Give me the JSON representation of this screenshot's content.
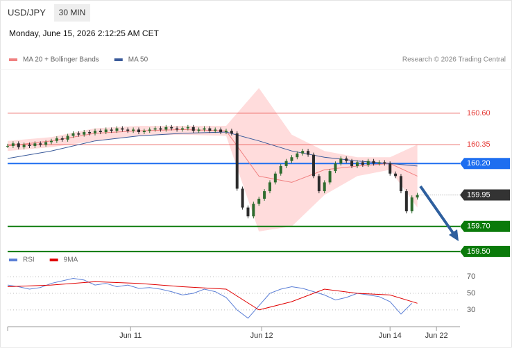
{
  "header": {
    "symbol": "USD/JPY",
    "timeframe": "30 MIN",
    "datetime": "Monday, June 15, 2026 2:12:25 AM CET",
    "credit": "Research © 2026 Trading Central"
  },
  "chart_data": [
    {
      "type": "candlestick",
      "x": [
        0,
        1,
        2,
        3,
        4,
        5,
        6,
        7,
        8,
        9,
        10,
        11,
        12,
        13,
        14,
        15,
        16,
        17,
        18,
        19,
        20,
        21,
        22,
        23,
        24,
        25,
        26,
        27,
        28,
        29,
        30,
        31,
        32,
        33,
        34,
        35,
        36,
        37,
        38,
        39,
        40,
        41,
        42,
        43,
        44,
        45,
        46,
        47,
        48,
        49,
        50,
        51,
        52,
        53,
        54,
        55,
        56,
        57,
        58,
        59,
        60,
        61,
        62,
        63,
        64,
        65,
        66,
        67,
        68,
        69,
        70,
        71,
        72,
        73,
        74,
        75
      ],
      "close": [
        160.34,
        160.36,
        160.33,
        160.35,
        160.34,
        160.36,
        160.35,
        160.37,
        160.38,
        160.4,
        160.39,
        160.42,
        160.44,
        160.43,
        160.45,
        160.44,
        160.46,
        160.45,
        160.47,
        160.46,
        160.48,
        160.47,
        160.46,
        160.47,
        160.45,
        160.46,
        160.47,
        160.48,
        160.47,
        160.49,
        160.48,
        160.47,
        160.48,
        160.49,
        160.46,
        160.47,
        160.48,
        160.46,
        160.47,
        160.45,
        160.46,
        160.44,
        160.0,
        159.85,
        159.78,
        159.88,
        159.92,
        159.98,
        160.05,
        160.12,
        160.18,
        160.22,
        160.25,
        160.28,
        160.3,
        160.27,
        160.1,
        159.98,
        160.05,
        160.14,
        160.2,
        160.24,
        160.22,
        160.18,
        160.21,
        160.19,
        160.22,
        160.2,
        160.21,
        160.2,
        160.12,
        160.1,
        159.98,
        159.82,
        159.93,
        159.95
      ],
      "series": [
        {
          "name": "MA 20 + Bollinger Bands",
          "color": "#f08080",
          "band_color": "#ffdcdc",
          "x": [
            0,
            8,
            16,
            24,
            32,
            40,
            46,
            52,
            58,
            64,
            70,
            75
          ],
          "values": [
            160.34,
            160.38,
            160.44,
            160.46,
            160.47,
            160.46,
            160.1,
            160.05,
            160.15,
            160.18,
            160.2,
            160.1
          ],
          "upper": [
            160.38,
            160.41,
            160.48,
            160.5,
            160.5,
            160.5,
            160.8,
            160.43,
            160.3,
            160.25,
            160.25,
            160.35
          ],
          "lower": [
            160.3,
            160.33,
            160.38,
            160.42,
            160.43,
            160.42,
            159.66,
            159.7,
            159.95,
            160.1,
            160.15,
            159.85
          ]
        },
        {
          "name": "MA 50",
          "color": "#3a5a9a",
          "x": [
            0,
            8,
            16,
            24,
            32,
            40,
            46,
            52,
            58,
            64,
            70,
            75
          ],
          "values": [
            160.24,
            160.3,
            160.38,
            160.42,
            160.44,
            160.45,
            160.38,
            160.3,
            160.25,
            160.22,
            160.2,
            160.18
          ]
        }
      ],
      "levels": [
        {
          "value": 160.6,
          "label": "160.60",
          "color": "#e53935",
          "style": "text"
        },
        {
          "value": 160.35,
          "label": "160.35",
          "color": "#e53935",
          "style": "text"
        },
        {
          "value": 160.2,
          "label": "160.20",
          "color": "#1e6ef0",
          "style": "box"
        },
        {
          "value": 159.95,
          "label": "159.95",
          "color": "#333333",
          "style": "current"
        },
        {
          "value": 159.7,
          "label": "159.70",
          "color": "#0a7a0a",
          "style": "box"
        },
        {
          "value": 159.5,
          "label": "159.50",
          "color": "#0a7a0a",
          "style": "box"
        }
      ],
      "xlim": [
        0,
        82.8
      ],
      "ylim": [
        159.4,
        160.92
      ],
      "up_color": "#2e6b2e",
      "down_color": "#2b2b2b"
    },
    {
      "type": "line",
      "series": [
        {
          "name": "RSI",
          "color": "#5b7fd6",
          "x": [
            0,
            2,
            4,
            6,
            8,
            10,
            12,
            14,
            16,
            18,
            20,
            22,
            24,
            26,
            28,
            30,
            32,
            34,
            36,
            38,
            40,
            42,
            44,
            46,
            48,
            50,
            52,
            54,
            56,
            58,
            60,
            62,
            64,
            66,
            68,
            70,
            72,
            74
          ],
          "values": [
            60,
            58,
            55,
            57,
            62,
            65,
            68,
            66,
            60,
            62,
            58,
            60,
            56,
            57,
            55,
            52,
            48,
            50,
            55,
            52,
            45,
            30,
            20,
            35,
            50,
            55,
            58,
            56,
            52,
            48,
            42,
            45,
            50,
            48,
            46,
            40,
            25,
            38
          ]
        },
        {
          "name": "9MA",
          "color": "#e00000",
          "x": [
            0,
            8,
            16,
            24,
            32,
            40,
            46,
            52,
            58,
            64,
            70,
            75
          ],
          "values": [
            58,
            60,
            64,
            62,
            58,
            55,
            30,
            40,
            55,
            50,
            48,
            38
          ]
        }
      ],
      "xlim": [
        0,
        82.8
      ],
      "ylim": [
        14,
        81
      ],
      "yticks": [
        30,
        50,
        70
      ],
      "xticks": [
        {
          "value": 22.5,
          "label": "Jun 11"
        },
        {
          "value": 46.5,
          "label": "Jun 12"
        },
        {
          "value": 70,
          "label": "Jun 14"
        },
        {
          "value": 78.5,
          "label": "Jun 22"
        }
      ]
    }
  ]
}
